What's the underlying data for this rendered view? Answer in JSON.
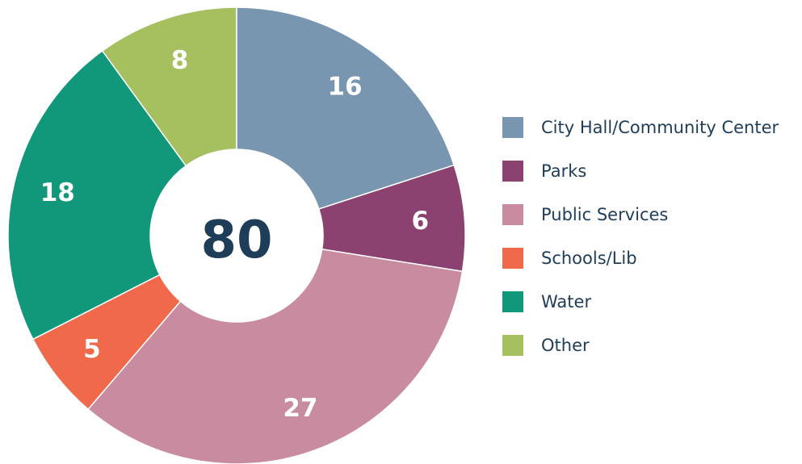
{
  "chart_data": {
    "type": "pie",
    "categories": [
      "City Hall/Community Center",
      "Parks",
      "Public Services",
      "Schools/Lib",
      "Water",
      "Other"
    ],
    "values": [
      16,
      6,
      27,
      5,
      18,
      8
    ],
    "colors": [
      "#7896b0",
      "#8b4270",
      "#c98ba0",
      "#f0694b",
      "#11977a",
      "#a6c060"
    ],
    "center_label": 80,
    "legend": "right"
  }
}
